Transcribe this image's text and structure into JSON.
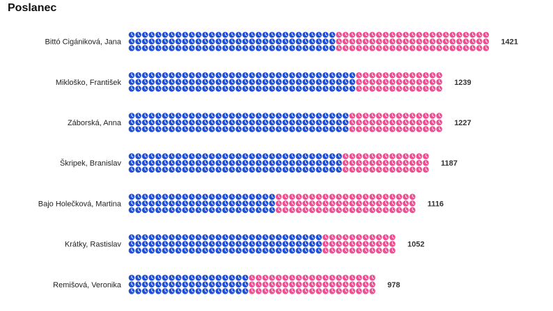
{
  "header": {
    "title": "Poslanec"
  },
  "colors": {
    "blue": "#1f4fd8",
    "pink": "#ee4f92"
  },
  "icon": "clock-icon",
  "chart_data": {
    "type": "bar",
    "stacked": true,
    "categories": [
      "Bittó Cigániková, Jana",
      "Mikloško, František",
      "Záborská, Anna",
      "Škripek, Branislav",
      "Bajo Holečková, Martina",
      "Krátky, Rastislav",
      "Remišová, Veronika"
    ],
    "totals": [
      1421,
      1239,
      1227,
      1187,
      1116,
      1052,
      978
    ],
    "series": [
      {
        "color": "blue",
        "values": [
          800,
          890,
          860,
          830,
          560,
          760,
          460
        ]
      },
      {
        "color": "pink",
        "values": [
          621,
          349,
          367,
          357,
          556,
          292,
          518
        ]
      }
    ]
  }
}
